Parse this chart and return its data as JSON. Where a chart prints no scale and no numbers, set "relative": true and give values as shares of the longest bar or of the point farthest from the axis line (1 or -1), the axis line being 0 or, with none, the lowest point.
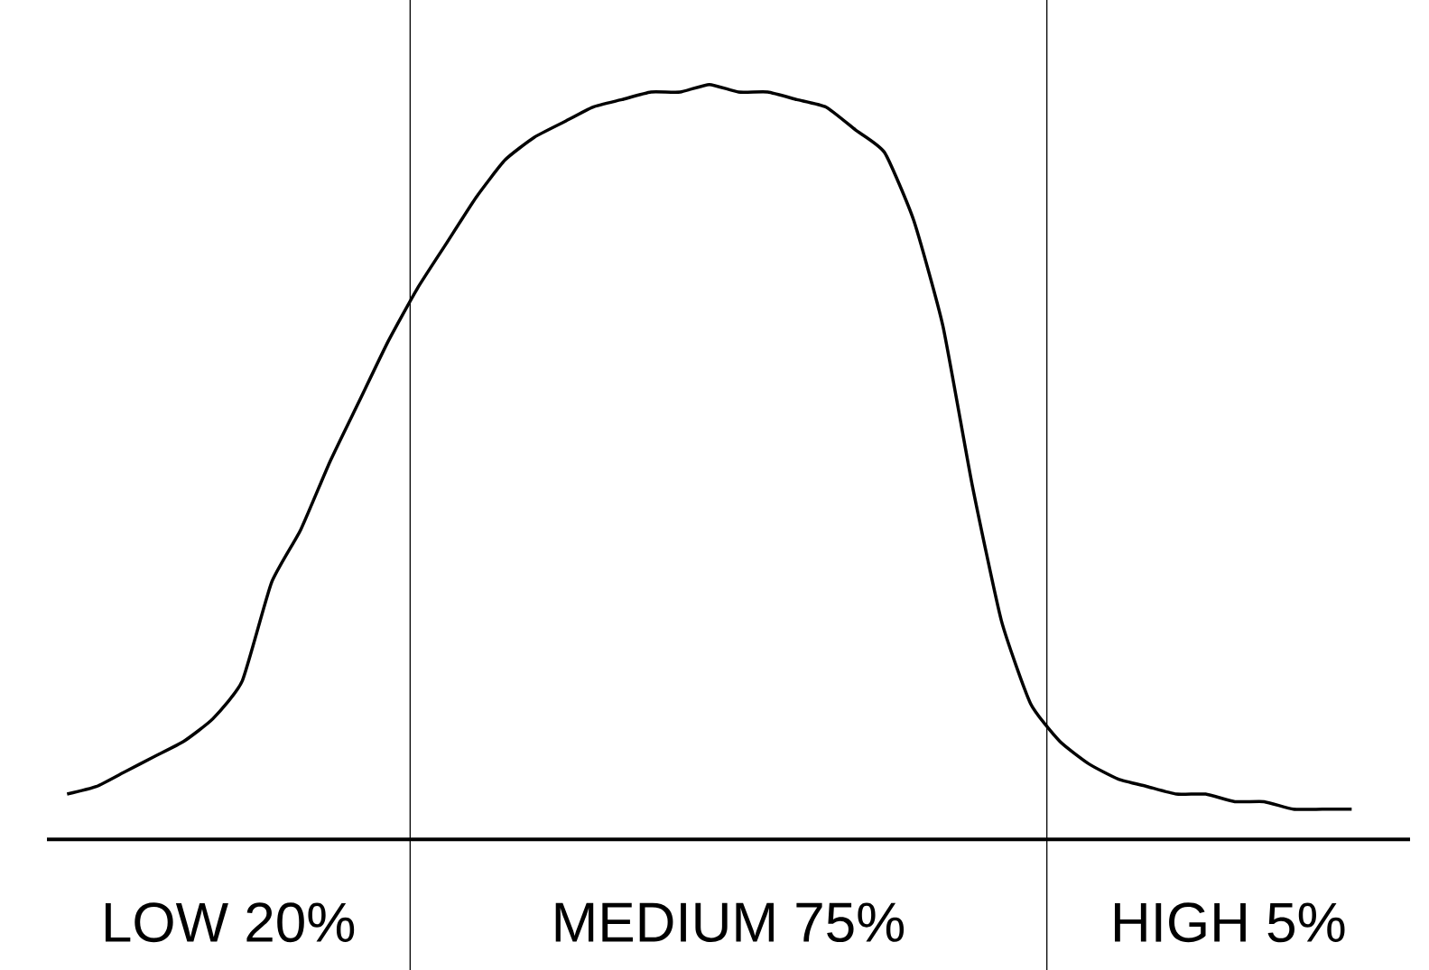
{
  "chart_data": {
    "type": "line",
    "relative": true,
    "color": "#000000",
    "marker": "none",
    "line_style": "solid",
    "categories": [
      null,
      null,
      null,
      null,
      null,
      null,
      null,
      null,
      null,
      null,
      null,
      null,
      null,
      null,
      null,
      null,
      null,
      null,
      null,
      null,
      null,
      null,
      null,
      null,
      null,
      null,
      null,
      null,
      null,
      null,
      null,
      null,
      null,
      null,
      null,
      null,
      null,
      null,
      null,
      null,
      null,
      null,
      null,
      null,
      null
    ],
    "values": [
      0.06,
      0.07,
      0.09,
      0.11,
      0.13,
      0.16,
      0.21,
      0.34,
      0.41,
      0.5,
      0.58,
      0.66,
      0.73,
      0.79,
      0.85,
      0.9,
      0.93,
      0.95,
      0.97,
      0.98,
      0.99,
      0.99,
      1.0,
      0.99,
      0.99,
      0.98,
      0.97,
      0.94,
      0.91,
      0.82,
      0.68,
      0.47,
      0.29,
      0.18,
      0.13,
      0.1,
      0.08,
      0.07,
      0.06,
      0.06,
      0.05,
      0.05,
      0.04,
      0.04,
      0.04
    ],
    "annotations": [
      "LOW 20%",
      "MEDIUM 75%",
      "HIGH 5%"
    ]
  }
}
